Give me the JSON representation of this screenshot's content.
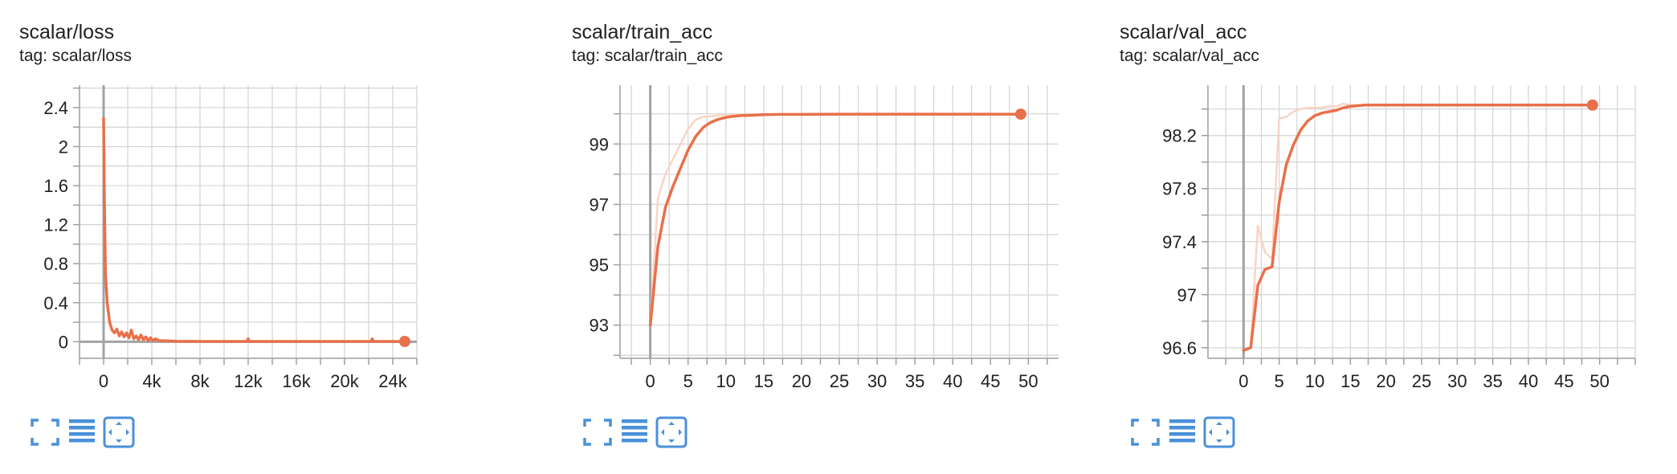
{
  "colors": {
    "smoothed": "#e8704a",
    "raw": "#f9d4c3",
    "grid": "#d3d3d3",
    "axis": "#9e9e9e",
    "zero_line": "#a2a2a2",
    "icon": "#4a90d9",
    "text": "#212121"
  },
  "toolbar": {
    "icons": [
      "fullscreen-icon",
      "data-table-icon",
      "fit-domain-icon"
    ]
  },
  "chart_data": [
    {
      "type": "line",
      "title": "scalar/loss",
      "tag": "tag: scalar/loss",
      "xlim": [
        -2000,
        26000
      ],
      "ylim": [
        -0.17,
        2.63
      ],
      "x_ticks": [
        0,
        4000,
        8000,
        12000,
        16000,
        20000,
        24000
      ],
      "x_tick_labels": [
        "0",
        "4k",
        "8k",
        "12k",
        "16k",
        "20k",
        "24k"
      ],
      "y_ticks": [
        0,
        0.4,
        0.8,
        1.2,
        1.6,
        2,
        2.4
      ],
      "y_tick_labels": [
        "0",
        "0.4",
        "0.8",
        "1.2",
        "1.6",
        "2",
        "2.4"
      ],
      "series": [
        {
          "role": "smoothed",
          "x": [
            0,
            60,
            150,
            300,
            500,
            700,
            900,
            1100,
            1300,
            1500,
            1700,
            1900,
            2100,
            2300,
            2500,
            2700,
            2900,
            3100,
            3300,
            3500,
            3700,
            3900,
            4100,
            4300,
            4600,
            5000,
            6000,
            8000,
            10000,
            11900,
            12000,
            12100,
            14000,
            16000,
            18000,
            20000,
            22200,
            22300,
            22400,
            24000,
            25000
          ],
          "y": [
            2.29,
            1.5,
            0.7,
            0.4,
            0.2,
            0.12,
            0.09,
            0.13,
            0.06,
            0.1,
            0.05,
            0.09,
            0.04,
            0.12,
            0.03,
            0.06,
            0.02,
            0.07,
            0.02,
            0.05,
            0.01,
            0.04,
            0.01,
            0.03,
            0.01,
            0.01,
            0.005,
            0.003,
            0.003,
            0.003,
            0.03,
            0.003,
            0.003,
            0.003,
            0.003,
            0.003,
            0.003,
            0.03,
            0.003,
            0.003,
            0.003
          ]
        }
      ],
      "last_point": {
        "x": 25000,
        "y": 0.003
      }
    },
    {
      "type": "line",
      "title": "scalar/train_acc",
      "tag": "tag: scalar/train_acc",
      "xlim": [
        -4,
        54
      ],
      "ylim": [
        91.9,
        100.95
      ],
      "x_ticks": [
        0,
        5,
        10,
        15,
        20,
        25,
        30,
        35,
        40,
        45,
        50
      ],
      "x_tick_labels": [
        "0",
        "5",
        "10",
        "15",
        "20",
        "25",
        "30",
        "35",
        "40",
        "45",
        "50"
      ],
      "y_ticks": [
        93,
        95,
        97,
        99
      ],
      "y_tick_labels": [
        "93",
        "95",
        "97",
        "99"
      ],
      "series": [
        {
          "role": "raw",
          "x": [
            0,
            1,
            2,
            3,
            4,
            5,
            6,
            7,
            8,
            9,
            10,
            11,
            12,
            13,
            14,
            15,
            20,
            25,
            30,
            35,
            40,
            45,
            49
          ],
          "y": [
            93,
            97.2,
            98,
            98.5,
            99,
            99.5,
            99.8,
            99.9,
            99.92,
            99.95,
            99.96,
            99.97,
            99.97,
            99.98,
            99.98,
            99.98,
            99.98,
            99.99,
            99.99,
            99.99,
            99.99,
            99.99,
            99.99
          ]
        },
        {
          "role": "smoothed",
          "x": [
            0,
            1,
            2,
            3,
            4,
            5,
            6,
            7,
            8,
            9,
            10,
            11,
            12,
            13,
            14,
            15,
            17,
            20,
            25,
            30,
            35,
            40,
            45,
            49
          ],
          "y": [
            93,
            95.6,
            96.9,
            97.6,
            98.2,
            98.8,
            99.25,
            99.55,
            99.72,
            99.82,
            99.88,
            99.92,
            99.94,
            99.95,
            99.96,
            99.97,
            99.98,
            99.98,
            99.99,
            99.99,
            99.99,
            99.99,
            99.99,
            99.99
          ]
        }
      ],
      "last_point": {
        "x": 49,
        "y": 99.99
      }
    },
    {
      "type": "line",
      "title": "scalar/val_acc",
      "tag": "tag: scalar/val_acc",
      "xlim": [
        -5,
        55
      ],
      "ylim": [
        96.52,
        98.58
      ],
      "x_ticks": [
        0,
        5,
        10,
        15,
        20,
        25,
        30,
        35,
        40,
        45,
        50
      ],
      "x_tick_labels": [
        "0",
        "5",
        "10",
        "15",
        "20",
        "25",
        "30",
        "35",
        "40",
        "45",
        "50"
      ],
      "y_ticks": [
        96.6,
        97,
        97.4,
        97.8,
        98.2
      ],
      "y_tick_labels": [
        "96.6",
        "97",
        "97.4",
        "97.8",
        "98.2"
      ],
      "series": [
        {
          "role": "raw",
          "x": [
            0,
            1,
            2,
            3,
            4,
            5,
            6,
            7,
            8,
            9,
            10,
            11,
            12,
            13,
            14,
            15,
            20,
            25,
            30,
            35,
            40,
            45,
            49
          ],
          "y": [
            96.58,
            96.6,
            97.52,
            97.32,
            97.27,
            98.33,
            98.34,
            98.38,
            98.4,
            98.41,
            98.41,
            98.41,
            98.42,
            98.42,
            98.44,
            98.43,
            98.43,
            98.43,
            98.43,
            98.43,
            98.43,
            98.43,
            98.43
          ]
        },
        {
          "role": "smoothed",
          "x": [
            0,
            1,
            2,
            3,
            4,
            5,
            6,
            7,
            8,
            9,
            10,
            11,
            12,
            13,
            14,
            15,
            16,
            17,
            20,
            25,
            30,
            35,
            40,
            45,
            49
          ],
          "y": [
            96.58,
            96.6,
            97.07,
            97.19,
            97.21,
            97.7,
            97.98,
            98.13,
            98.24,
            98.31,
            98.35,
            98.37,
            98.38,
            98.39,
            98.41,
            98.42,
            98.425,
            98.43,
            98.43,
            98.43,
            98.43,
            98.43,
            98.43,
            98.43,
            98.43
          ]
        }
      ],
      "last_point": {
        "x": 49,
        "y": 98.43
      }
    }
  ]
}
